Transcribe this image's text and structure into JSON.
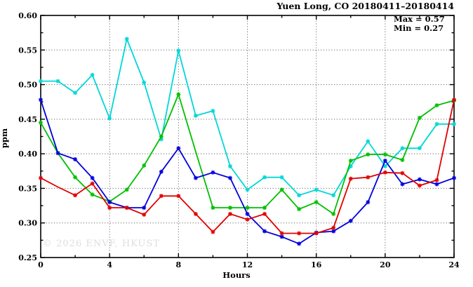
{
  "page": {
    "title": "Yuen Long, CO 20180411–20180414"
  },
  "annotation": {
    "max_label": "Max = 0.57",
    "min_label": "Min = 0.27"
  },
  "watermark": "© 2026 ENVF, HKUST",
  "axes": {
    "x_label": "Hours",
    "y_label": "ppm"
  },
  "chart_data": {
    "type": "line",
    "title": "Yuen Long, CO 20180411–20180414",
    "xlabel": "Hours",
    "ylabel": "ppm",
    "xlim": [
      0,
      24
    ],
    "ylim": [
      0.25,
      0.6
    ],
    "grid": true,
    "legend": "none",
    "marker": "asterisk",
    "annotations": [
      "Max = 0.57",
      "Min = 0.27"
    ],
    "stats": {
      "max": 0.57,
      "min": 0.27
    },
    "x_major_ticks": [
      0,
      4,
      8,
      12,
      16,
      20,
      24
    ],
    "x_minor_ticks": [
      2,
      6,
      10,
      14,
      18,
      22
    ],
    "y_major_ticks": [
      0.25,
      0.3,
      0.35,
      0.4,
      0.45,
      0.5,
      0.55,
      0.6
    ],
    "y_minor_ticks": [
      0.275,
      0.325,
      0.375,
      0.425,
      0.475,
      0.525,
      0.575
    ],
    "grid_x": [
      4,
      8,
      12,
      16,
      20
    ],
    "grid_y": [
      0.3,
      0.35,
      0.4,
      0.45,
      0.5,
      0.55
    ],
    "x": [
      0,
      1,
      2,
      3,
      4,
      5,
      6,
      7,
      8,
      9,
      10,
      11,
      12,
      13,
      14,
      15,
      16,
      17,
      18,
      19,
      20,
      21,
      22,
      23,
      24
    ],
    "series": [
      {
        "name": "series-cyan",
        "color": "#00d7d7",
        "no_marker_at": [],
        "values": [
          0.505,
          0.505,
          0.488,
          0.514,
          0.451,
          0.566,
          0.503,
          0.421,
          0.549,
          0.455,
          0.462,
          0.382,
          0.348,
          0.366,
          0.366,
          0.34,
          0.348,
          0.34,
          0.382,
          0.418,
          0.382,
          0.408,
          0.408,
          0.443,
          0.443
        ]
      },
      {
        "name": "series-green",
        "color": "#00c000",
        "no_marker_at": [
          9
        ],
        "values": [
          0.445,
          0.401,
          0.366,
          0.341,
          0.331,
          0.348,
          0.383,
          0.425,
          0.486,
          0.403,
          0.322,
          0.322,
          0.322,
          0.322,
          0.348,
          0.32,
          0.33,
          0.313,
          0.39,
          0.399,
          0.399,
          0.391,
          0.452,
          0.47,
          0.477
        ]
      },
      {
        "name": "series-blue",
        "color": "#0000dc",
        "no_marker_at": [],
        "values": [
          0.478,
          0.401,
          0.392,
          0.365,
          0.33,
          0.322,
          0.322,
          0.374,
          0.408,
          0.365,
          0.373,
          0.365,
          0.313,
          0.288,
          0.28,
          0.27,
          0.286,
          0.288,
          0.303,
          0.33,
          0.39,
          0.356,
          0.363,
          0.356,
          0.365
        ]
      },
      {
        "name": "series-red",
        "color": "#e00000",
        "no_marker_at": [
          1
        ],
        "values": [
          0.365,
          0.352,
          0.34,
          0.357,
          0.322,
          0.322,
          0.312,
          0.339,
          0.339,
          0.313,
          0.287,
          0.313,
          0.305,
          0.313,
          0.285,
          0.285,
          0.285,
          0.293,
          0.364,
          0.366,
          0.373,
          0.372,
          0.354,
          0.362,
          0.478
        ]
      }
    ]
  }
}
